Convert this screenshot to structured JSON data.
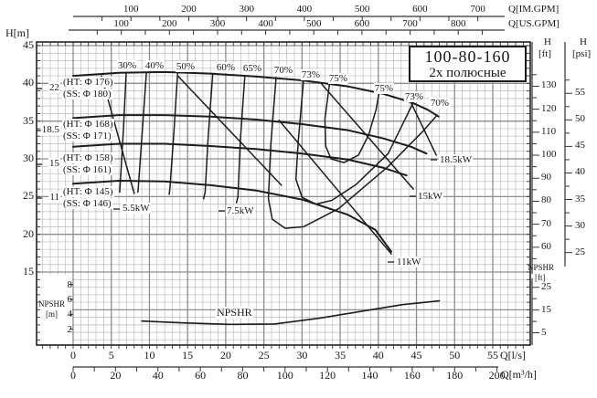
{
  "title_box": {
    "model": "100-80-160",
    "poles": "2х полюсные"
  },
  "headers": {
    "h_m": "H[m]",
    "q_im": "Q[IM.GPM]",
    "q_us": "Q[US.GPM]",
    "q_ls": "Q[l/s]",
    "q_m3h": "Q[m³/h]",
    "h": "H",
    "ft": "[ft]",
    "psi": "[psi]",
    "npshr": "NPSHR",
    "m": "[m]",
    "npshr2": "NPSHR",
    "ft2": "[ft]"
  },
  "chart_data": {
    "type": "line",
    "model": "100-80-160",
    "poles_label": "2х полюсные",
    "axes": {
      "h_m": {
        "label": "H[m]",
        "ticks": [
          45,
          40,
          35,
          30,
          25,
          20,
          15
        ]
      },
      "npshr_m": {
        "label": "NPSHR [m]",
        "ticks": [
          8,
          6,
          4,
          2
        ]
      },
      "q_ls": {
        "label": "Q[l/s]",
        "ticks": [
          0,
          5,
          10,
          15,
          20,
          25,
          30,
          35,
          40,
          45,
          50,
          55
        ]
      },
      "q_m3h": {
        "label": "Q[m³/h]",
        "ticks": [
          0,
          20,
          40,
          60,
          80,
          100,
          120,
          140,
          160,
          180,
          200
        ]
      },
      "q_im_gpm": {
        "label": "Q[IM.GPM]",
        "ticks": [
          100,
          200,
          300,
          400,
          500,
          600,
          700
        ]
      },
      "q_us_gpm": {
        "label": "Q[US.GPM]",
        "ticks": [
          100,
          200,
          300,
          400,
          500,
          600,
          700,
          800
        ]
      },
      "h_ft": {
        "label": "H [ft]",
        "ticks": [
          130,
          120,
          110,
          100,
          90,
          80,
          70,
          60
        ]
      },
      "h_psi": {
        "label": "H [psi]",
        "ticks": [
          55,
          50,
          45,
          40,
          35,
          30,
          25
        ]
      },
      "npshr_ft": {
        "label": "NPSHR [ft]",
        "ticks": [
          25,
          15,
          5
        ]
      }
    },
    "pump_curves": [
      {
        "power_kw": "22",
        "ht": "(HT: Φ 176)",
        "ss": "(SS: Φ 180)",
        "q_ls": [
          0,
          6,
          12,
          18,
          24,
          30,
          36,
          40.7,
          44.3,
          46.5,
          47.9
        ],
        "h_m": [
          41.0,
          41.4,
          41.5,
          41.3,
          40.9,
          40.4,
          39.6,
          38.6,
          37.5,
          36.5,
          35.6
        ]
      },
      {
        "power_kw": "18.5",
        "ht": "(HT: Φ 168)",
        "ss": "(SS: Φ 171)",
        "q_ls": [
          0,
          6,
          12,
          18,
          24,
          30,
          36,
          40.7,
          44.3,
          46.3
        ],
        "h_m": [
          35.4,
          35.8,
          35.8,
          35.6,
          35.2,
          34.6,
          33.8,
          32.7,
          31.6,
          30.7
        ]
      },
      {
        "power_kw": "15",
        "ht": "(HT: Φ 158)",
        "ss": "(SS: Φ 161)",
        "q_ls": [
          0,
          6,
          12,
          18,
          24,
          30,
          36,
          40.7,
          43.7
        ],
        "h_m": [
          31.6,
          32.0,
          32.0,
          31.7,
          31.3,
          30.7,
          29.9,
          28.8,
          27.8
        ]
      },
      {
        "power_kw": "11",
        "ht": "(HT: Φ 145)",
        "ss": "(SS: Φ 146)",
        "q_ls": [
          0,
          6,
          12,
          18,
          24,
          30,
          36,
          39.6,
          41.7
        ],
        "h_m": [
          26.7,
          27.1,
          27.0,
          26.5,
          25.8,
          24.6,
          22.6,
          20.6,
          17.7
        ]
      }
    ],
    "efficiency_contours": [
      {
        "label": "30%",
        "q_ls": [
          6.95,
          6.6,
          6.2,
          6.1
        ],
        "h_m": [
          41.4,
          34.1,
          27.1,
          25.6
        ]
      },
      {
        "label": "40%",
        "q_ls": [
          9.6,
          9.1,
          8.6,
          8.5
        ],
        "h_m": [
          41.4,
          34.1,
          27.1,
          25.6
        ]
      },
      {
        "label": "50%",
        "q_ls": [
          13.7,
          13.2,
          12.7,
          12.6
        ],
        "h_m": [
          41.4,
          33.5,
          26.3,
          25.3
        ]
      },
      {
        "label": "60%",
        "q_ls": [
          18.3,
          17.7,
          17.3,
          17.1
        ],
        "h_m": [
          41.3,
          32.9,
          25.6,
          24.7
        ]
      },
      {
        "label": "65%",
        "q_ls": [
          22.5,
          21.9,
          21.6,
          21.4
        ],
        "h_m": [
          41.0,
          32.3,
          25.0,
          24.2
        ]
      },
      {
        "label": "70%",
        "q_ls": [
          26.6,
          25.9,
          25.6,
          26.1,
          27.8,
          30.2,
          34.8,
          41.3,
          45.8,
          47.7
        ],
        "h_m": [
          40.8,
          31.7,
          24.7,
          22.0,
          20.8,
          21.0,
          23.4,
          29.0,
          33.6,
          35.8
        ]
      },
      {
        "label": "73%",
        "q_ls": [
          30.2,
          29.5,
          29.2,
          30.0,
          31.8,
          33.9,
          37.1,
          41.3,
          44.6
        ],
        "h_m": [
          40.4,
          32.3,
          27.3,
          24.9,
          24.0,
          24.5,
          26.6,
          30.7,
          37.5
        ]
      },
      {
        "label": "75%",
        "q_ls": [
          33.6,
          33.0,
          33.1,
          33.8,
          35.5,
          37.4,
          38.7,
          39.7,
          40.1
        ],
        "h_m": [
          39.9,
          35.3,
          31.7,
          30.0,
          29.5,
          30.5,
          33.1,
          36.5,
          38.7
        ]
      }
    ],
    "power_lines": [
      {
        "label": "5.5kW",
        "q_ls": [
          3.7,
          8.0
        ],
        "h_m": [
          41.0,
          25.4
        ]
      },
      {
        "label": "7.5kW",
        "q_ls": [
          13.8,
          27.3
        ],
        "h_m": [
          40.9,
          26.5
        ]
      },
      {
        "label": "11kW",
        "q_ls": [
          27.0,
          41.7
        ],
        "h_m": [
          35.1,
          17.4
        ]
      },
      {
        "label": "15kW",
        "q_ls": [
          32.6,
          44.6
        ],
        "h_m": [
          39.9,
          26.0
        ]
      },
      {
        "label": "18.5kW",
        "q_ls": [
          44.3,
          47.6
        ],
        "h_m": [
          37.4,
          30.5
        ]
      }
    ],
    "npshr_curve": {
      "label": "NPSHR",
      "q_ls": [
        9,
        14.4,
        20.4,
        26.4,
        32.4,
        38.4,
        43.2,
        48
      ],
      "npshr_m": [
        3.1,
        2.85,
        2.65,
        2.7,
        3.5,
        4.5,
        5.3,
        5.8
      ]
    }
  }
}
